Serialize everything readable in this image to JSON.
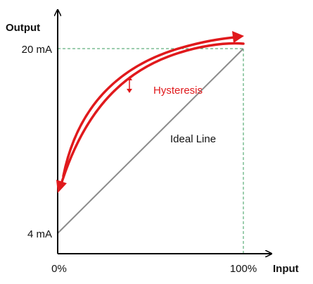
{
  "axes": {
    "y_title": "Output",
    "x_title": "Input",
    "y_max_label": "20 mA",
    "y_min_label": "4 mA",
    "x_min_label": "0%",
    "x_max_label": "100%"
  },
  "annotations": {
    "hysteresis": "Hysteresis",
    "ideal_line": "Ideal Line"
  },
  "colors": {
    "axis": "#000000",
    "ideal_line": "#888888",
    "hysteresis": "#e0191c",
    "guide": "#3a9e5c"
  }
}
